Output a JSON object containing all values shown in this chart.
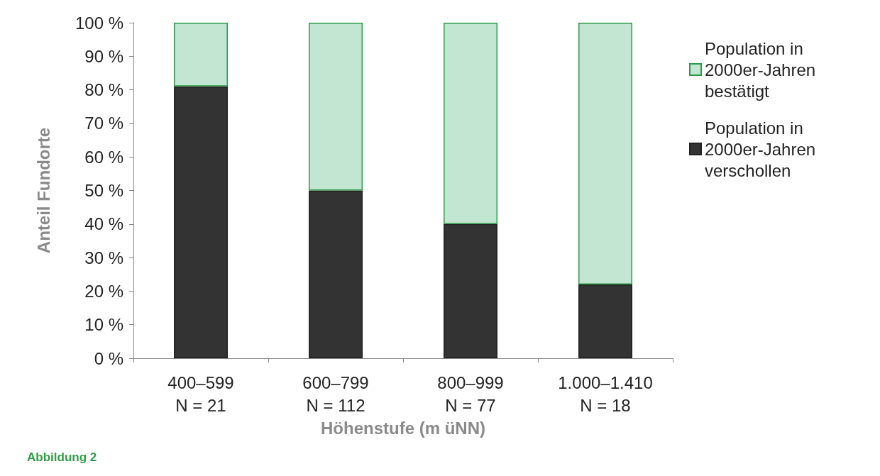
{
  "chart_data": {
    "type": "bar",
    "stacked": true,
    "ylabel": "Anteil Fundorte",
    "xlabel": "Höhenstufe (m üNN)",
    "categories": [
      "400–599\nN = 21",
      "600–799\nN = 112",
      "800–999\nN = 77",
      "1.000–1.410\nN = 18"
    ],
    "series": [
      {
        "name": "Population in 2000er-Jahren verschollen",
        "color": "#333333",
        "values": [
          81,
          50,
          40,
          22
        ]
      },
      {
        "name": "Population in 2000er-Jahren bestätigt",
        "color": "#c2e6d2",
        "values": [
          19,
          50,
          60,
          78
        ]
      }
    ],
    "ylim": [
      0,
      100
    ],
    "yticks": [
      {
        "value": 0,
        "label": "0 %"
      },
      {
        "value": 10,
        "label": "10 %"
      },
      {
        "value": 20,
        "label": "20 %"
      },
      {
        "value": 30,
        "label": "30 %"
      },
      {
        "value": 40,
        "label": "40 %"
      },
      {
        "value": 50,
        "label": "50 %"
      },
      {
        "value": 60,
        "label": "60 %"
      },
      {
        "value": 70,
        "label": "70 %"
      },
      {
        "value": 80,
        "label": "80 %"
      },
      {
        "value": 90,
        "label": "90 %"
      },
      {
        "value": 100,
        "label": "100 %"
      }
    ],
    "grid": false,
    "legend": "right",
    "annotations": [
      "Abbildung 2"
    ]
  }
}
